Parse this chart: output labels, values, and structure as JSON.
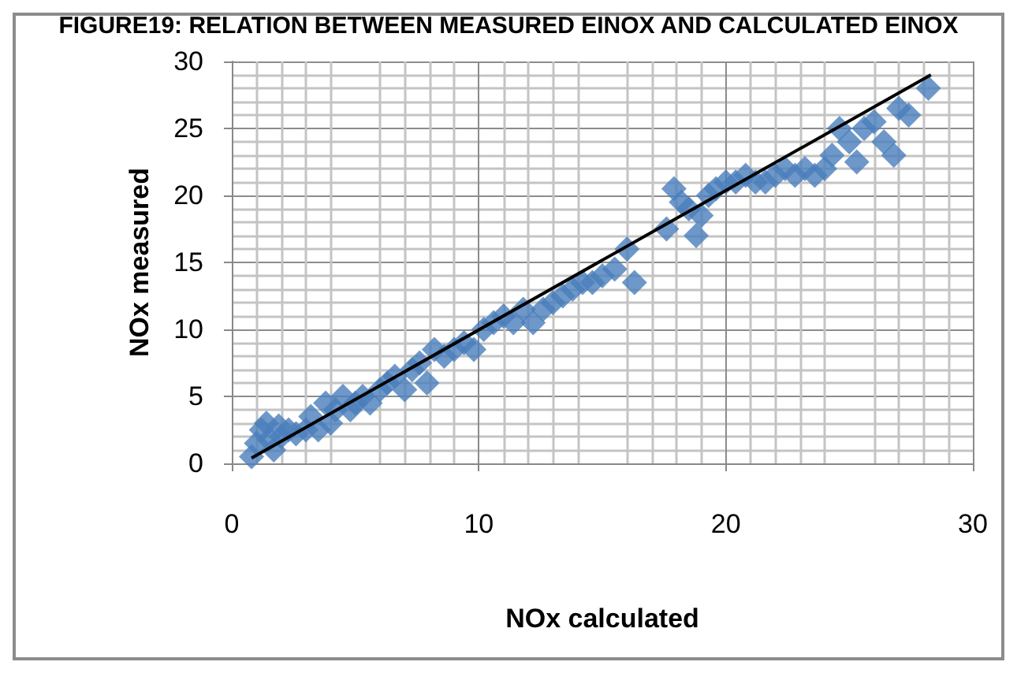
{
  "chart_data": {
    "type": "scatter",
    "title": "FIGURE19: RELATION BETWEEN MEASURED EINOX AND CALCULATED EINOX",
    "xlabel": "NOx calculated",
    "ylabel": "NOx measured",
    "xlim": [
      0,
      30
    ],
    "ylim": [
      0,
      30
    ],
    "xticks": [
      0,
      10,
      20,
      30
    ],
    "yticks": [
      0,
      5,
      10,
      15,
      20,
      25,
      30
    ],
    "grid": true,
    "marker": "diamond",
    "series": [
      {
        "type": "scatter",
        "color": "#4a7ebb",
        "x": [
          0.8,
          1.0,
          1.2,
          1.4,
          1.5,
          1.7,
          1.9,
          2.0,
          2.3,
          2.6,
          3.0,
          3.2,
          3.5,
          3.8,
          4.0,
          4.2,
          4.5,
          4.8,
          5.0,
          5.3,
          5.6,
          6.0,
          6.3,
          6.6,
          7.0,
          7.3,
          7.6,
          7.9,
          8.2,
          8.6,
          9.0,
          9.4,
          9.8,
          10.2,
          10.6,
          11.0,
          11.4,
          11.8,
          12.2,
          12.6,
          13.0,
          13.4,
          13.8,
          14.2,
          14.6,
          15.0,
          15.5,
          16.0,
          16.3,
          17.6,
          17.9,
          18.2,
          18.5,
          18.8,
          19.0,
          19.3,
          19.6,
          20.0,
          20.4,
          20.8,
          21.2,
          21.6,
          22.0,
          22.4,
          22.8,
          23.2,
          23.6,
          24.0,
          24.3,
          24.6,
          25.0,
          25.3,
          25.6,
          26.0,
          26.4,
          26.8,
          27.0,
          27.4,
          28.2
        ],
        "values": [
          0.5,
          1.5,
          2.5,
          3.0,
          1.8,
          1.0,
          2.8,
          2.0,
          2.5,
          2.2,
          2.5,
          3.5,
          2.5,
          4.5,
          3.0,
          4.0,
          5.0,
          4.0,
          4.5,
          5.0,
          4.5,
          5.5,
          6.0,
          6.5,
          5.5,
          7.0,
          7.5,
          6.0,
          8.5,
          8.0,
          8.5,
          9.0,
          8.5,
          10.0,
          10.5,
          11.0,
          10.5,
          11.5,
          10.5,
          11.5,
          12.0,
          12.5,
          13.0,
          13.5,
          13.5,
          14.0,
          14.5,
          16.0,
          13.5,
          17.5,
          20.5,
          19.5,
          19.0,
          17.0,
          18.5,
          20.0,
          20.5,
          21.0,
          21.0,
          21.5,
          21.0,
          21.0,
          21.5,
          22.0,
          21.5,
          22.0,
          21.5,
          22.0,
          23.0,
          25.0,
          24.0,
          22.5,
          25.0,
          25.5,
          24.0,
          23.0,
          26.5,
          26.0,
          28.0
        ]
      },
      {
        "type": "line",
        "color": "#000000",
        "marker": "none",
        "x": [
          0.8,
          28.3
        ],
        "values": [
          0.4,
          29.0
        ]
      }
    ]
  }
}
